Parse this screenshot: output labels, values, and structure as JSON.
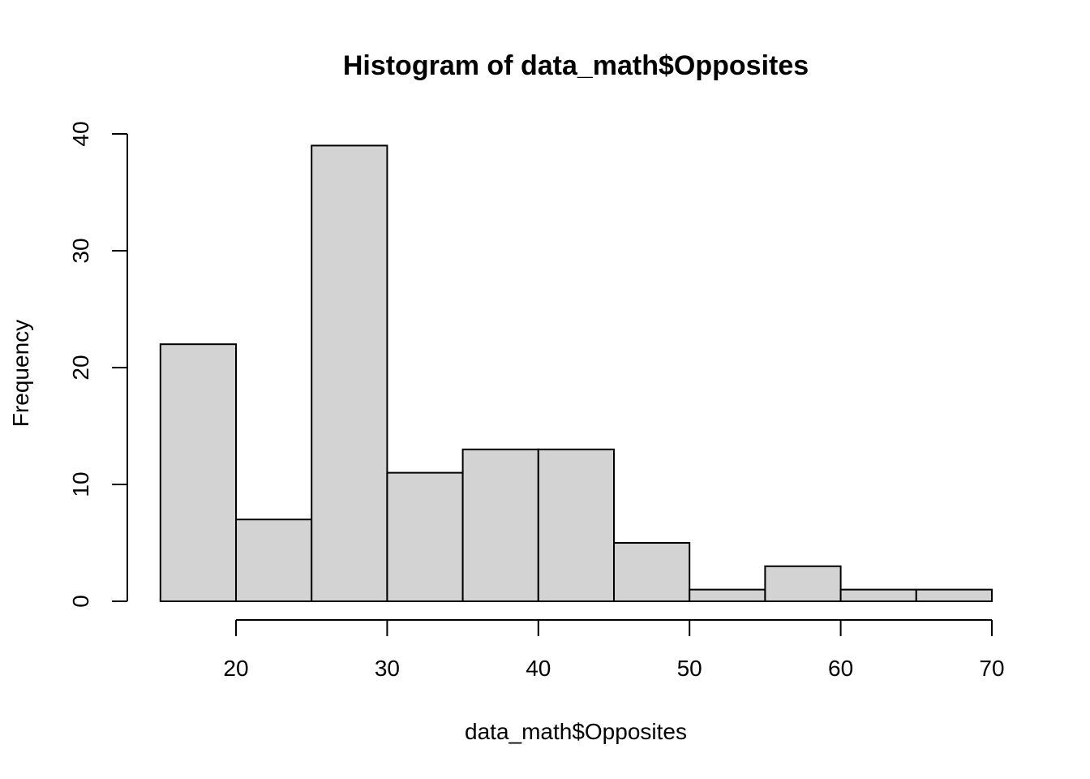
{
  "chart_data": {
    "type": "bar",
    "title": "Histogram of data_math$Opposites",
    "xlabel": "data_math$Opposites",
    "ylabel": "Frequency",
    "bins": [
      {
        "x0": 15,
        "x1": 20,
        "count": 22
      },
      {
        "x0": 20,
        "x1": 25,
        "count": 7
      },
      {
        "x0": 25,
        "x1": 30,
        "count": 39
      },
      {
        "x0": 30,
        "x1": 35,
        "count": 11
      },
      {
        "x0": 35,
        "x1": 40,
        "count": 13
      },
      {
        "x0": 40,
        "x1": 45,
        "count": 13
      },
      {
        "x0": 45,
        "x1": 50,
        "count": 5
      },
      {
        "x0": 50,
        "x1": 55,
        "count": 1
      },
      {
        "x0": 55,
        "x1": 60,
        "count": 3
      },
      {
        "x0": 60,
        "x1": 65,
        "count": 1
      },
      {
        "x0": 65,
        "x1": 70,
        "count": 1
      }
    ],
    "xticks": [
      20,
      30,
      40,
      50,
      60,
      70
    ],
    "yticks": [
      0,
      10,
      20,
      30,
      40
    ],
    "xlim": [
      15,
      70
    ],
    "ylim": [
      0,
      40
    ],
    "grid": false,
    "bar_color": "#d3d3d3"
  }
}
